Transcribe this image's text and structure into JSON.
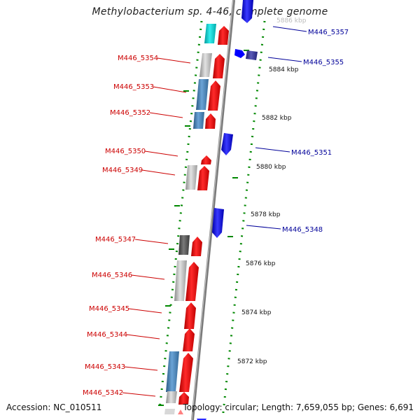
{
  "title": "Methylobacterium sp. 4-46, complete genome",
  "footer": {
    "accession": "Accession: NC_010511",
    "summary": "Topology: circular; Length: 7,659,055 bp; Genes: 6,691"
  },
  "colors": {
    "forward_cds": "#ff0000",
    "reverse_cds": "#0000ff",
    "rna_gene": "#00cccc",
    "reverse_other": "#333399",
    "feature_light_gray": "#c0c0c0",
    "feature_steel_blue": "#4682b4",
    "feature_dark_gray": "#555555",
    "gc_skew_dots": "#008800",
    "backbone": "#888888",
    "label_forward": "#cc0000",
    "label_reverse": "#000099"
  },
  "kbp_ticks": [
    "5886 kbp",
    "5884 kbp",
    "5882 kbp",
    "5880 kbp",
    "5878 kbp",
    "5876 kbp",
    "5874 kbp",
    "5872 kbp"
  ],
  "left_labels": [
    "M446_5354",
    "M446_5353",
    "M446_5352",
    "M446_5350",
    "M446_5349",
    "M446_5347",
    "M446_5346",
    "M446_5345",
    "M446_5344",
    "M446_5343",
    "M446_5342"
  ],
  "right_labels": [
    "M446_5357",
    "M446_5355",
    "M446_5351",
    "M446_5348"
  ]
}
